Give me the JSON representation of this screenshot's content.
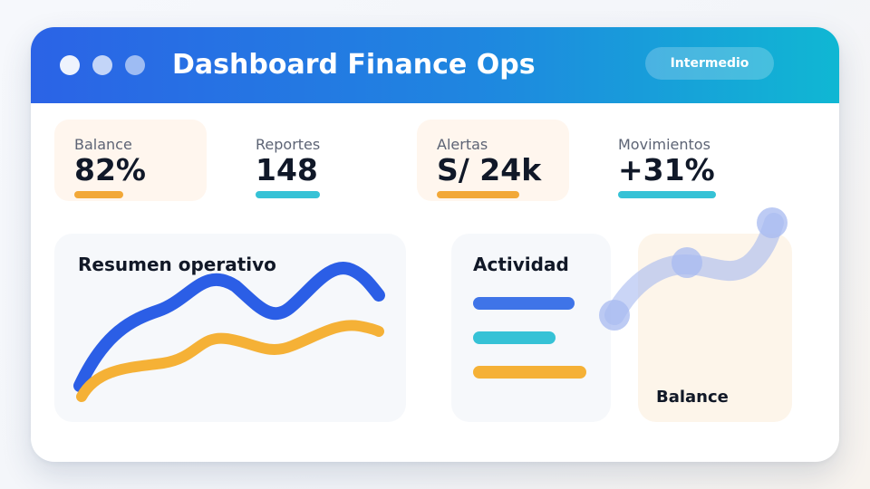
{
  "window": {
    "title": "Dashboard Finance Ops",
    "level_badge": "Intermedio"
  },
  "stats": [
    {
      "label": "Balance",
      "value": "82%",
      "accent": "#f2a838",
      "progress": 0.32
    },
    {
      "label": "Reportes",
      "value": "148",
      "accent": "#36c2d6",
      "progress": 0.42
    },
    {
      "label": "Alertas",
      "value": "S/ 24k",
      "accent": "#f2a838",
      "progress": 0.54
    },
    {
      "label": "Movimientos",
      "value": "+31%",
      "accent": "#36c2d6",
      "progress": 0.64
    }
  ],
  "trend_card": {
    "title": "Resumen operativo",
    "series_colors": [
      "#2b5ee6",
      "#f5b136"
    ]
  },
  "activity_card": {
    "title": "Actividad",
    "bars": [
      {
        "color": "#3f74e8",
        "fraction": 0.74
      },
      {
        "color": "#36c2d6",
        "fraction": 0.6
      },
      {
        "color": "#f5b136",
        "fraction": 0.82
      }
    ]
  },
  "balance_card": {
    "title": "Balance"
  },
  "colors": {
    "header_start": "#2b63e6",
    "header_end": "#10b7d3",
    "text_dark": "#101828",
    "text_muted": "#5d6475"
  }
}
